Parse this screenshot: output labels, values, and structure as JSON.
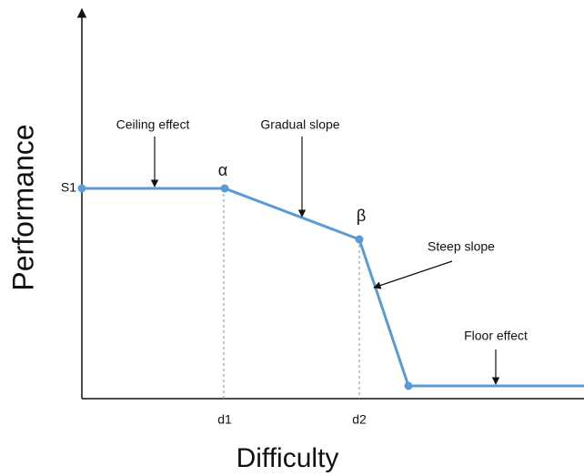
{
  "axes": {
    "y_label": "Performance",
    "x_label": "Difficulty"
  },
  "markers": {
    "s1": "S1",
    "d1": "d1",
    "d2": "d2",
    "alpha": "α",
    "beta": "β"
  },
  "annotations": {
    "ceiling": "Ceiling effect",
    "gradual": "Gradual slope",
    "steep": "Steep slope",
    "floor": "Floor effect"
  }
}
